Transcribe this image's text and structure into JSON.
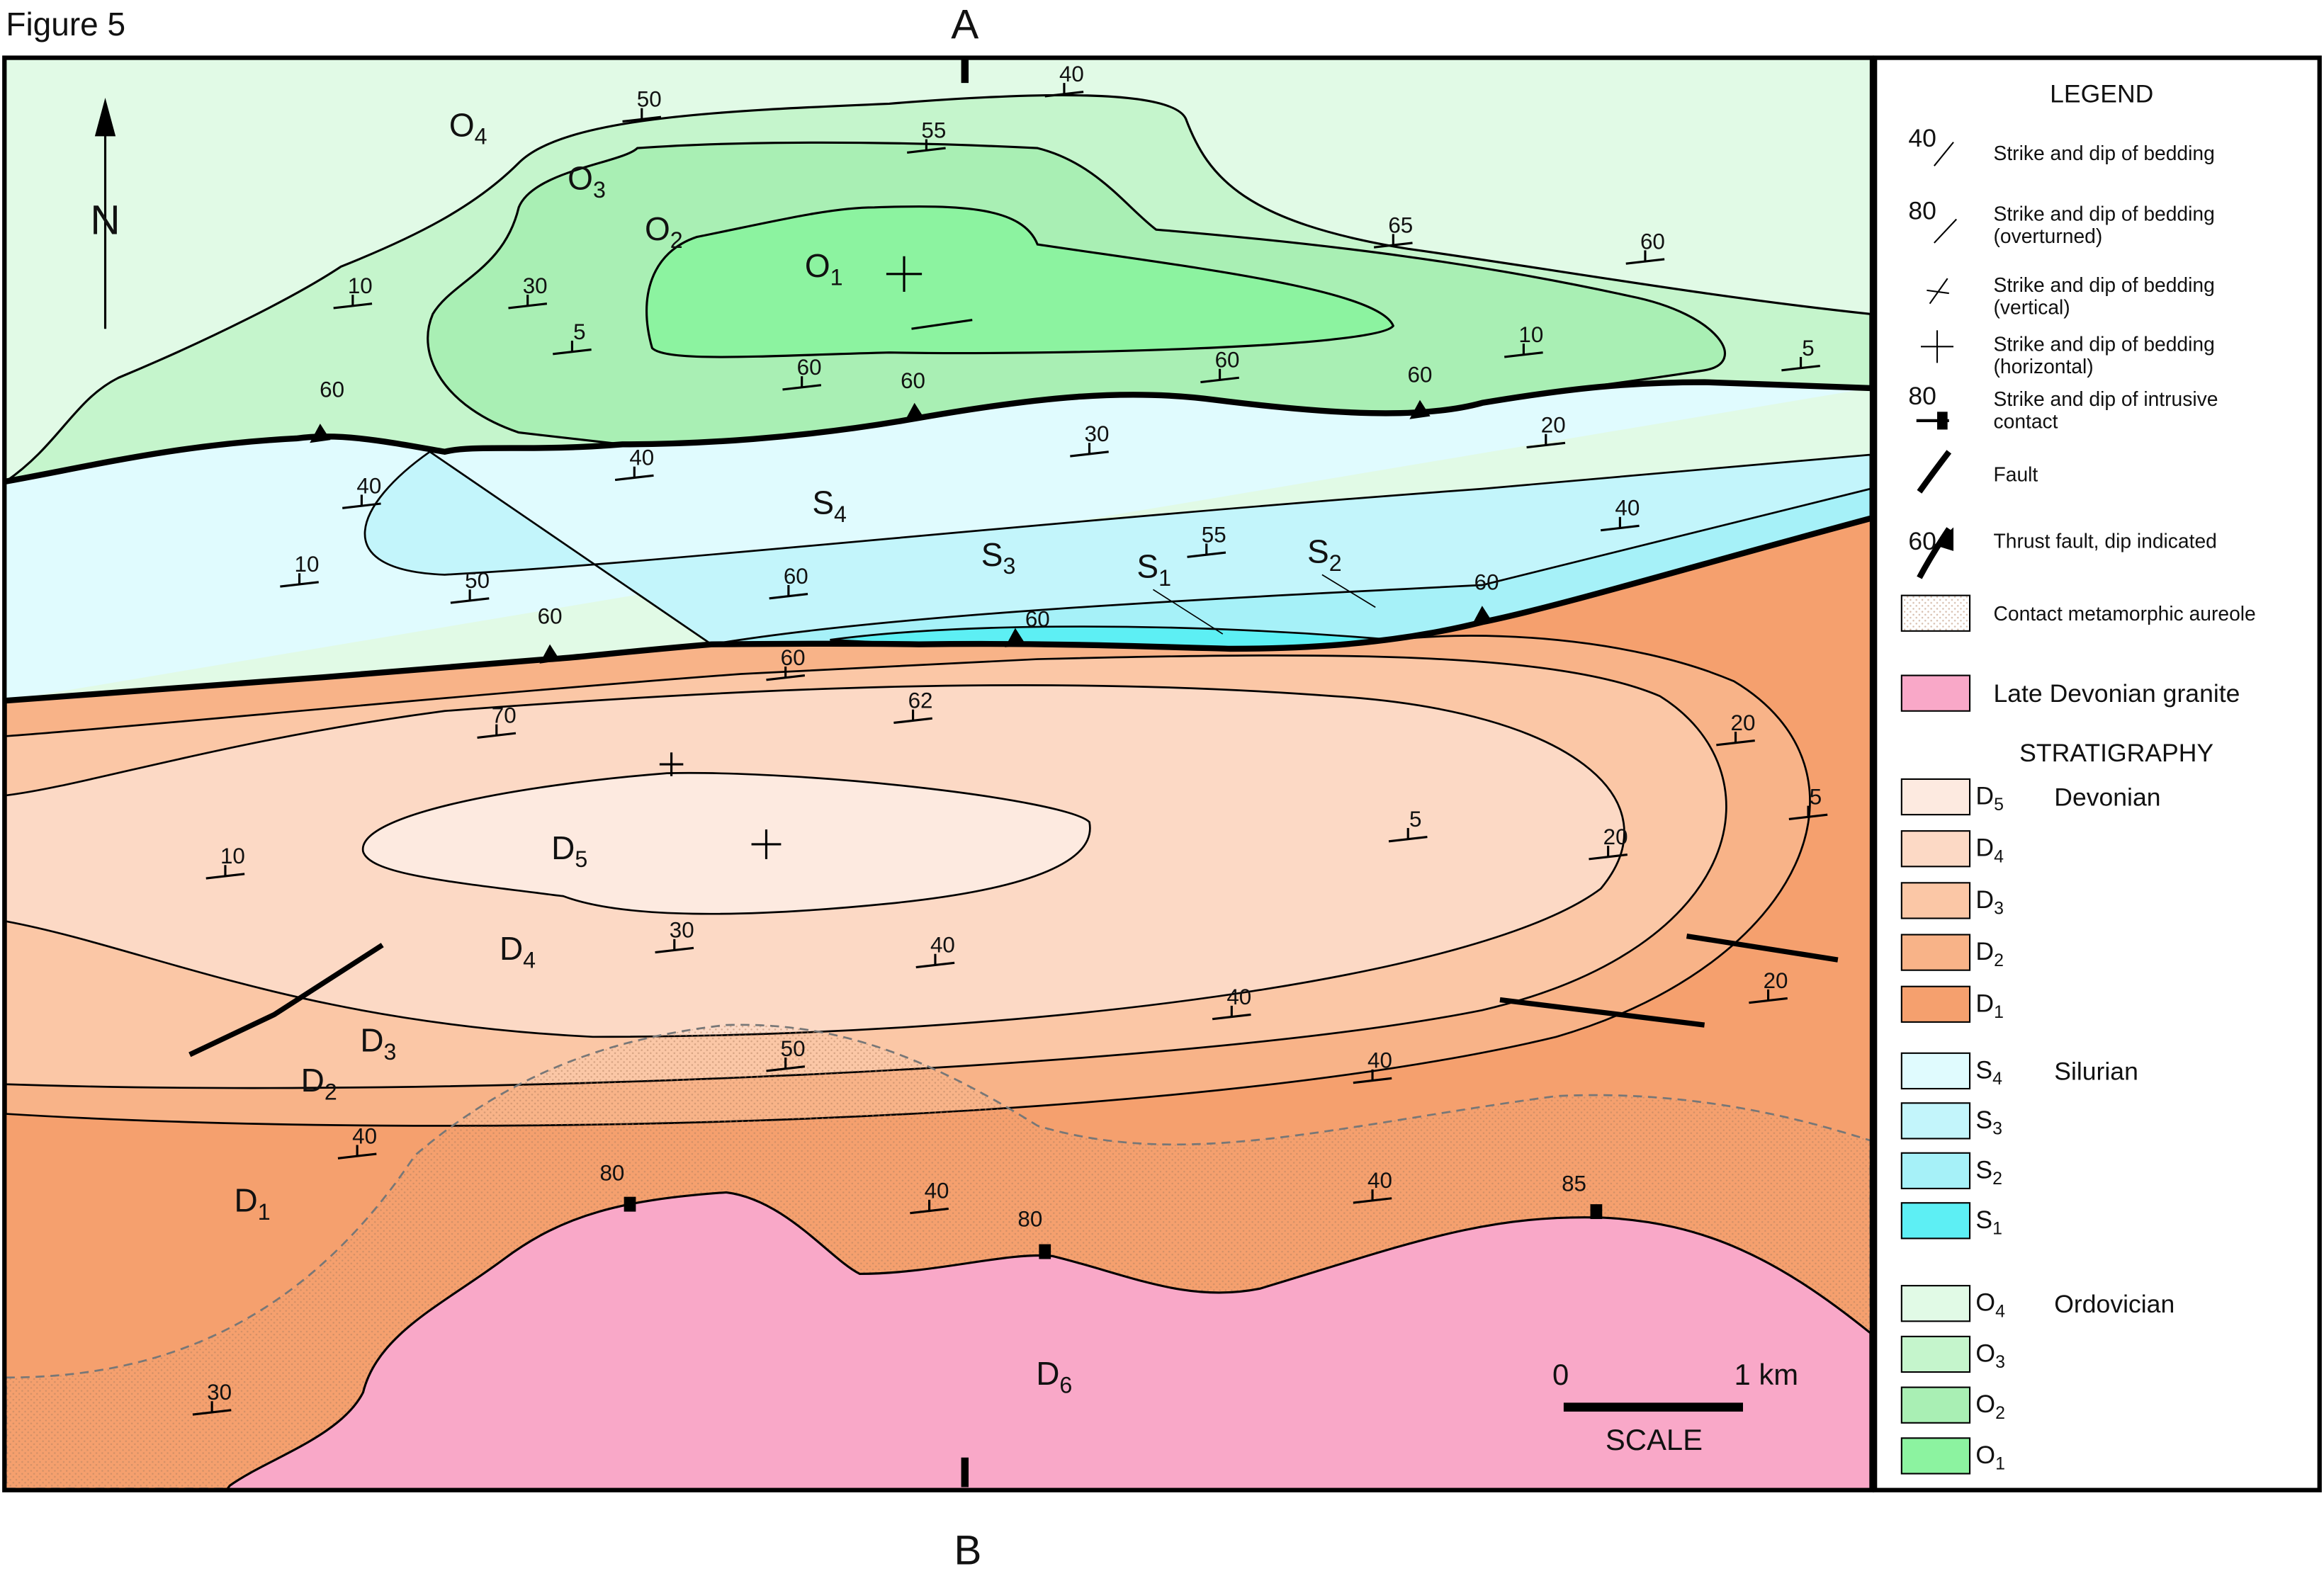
{
  "figure_label": "Figure 5",
  "section_ends": [
    "A",
    "B"
  ],
  "north": "N",
  "map_units": [
    {
      "letter": "O",
      "sub": "4"
    },
    {
      "letter": "O",
      "sub": "3"
    },
    {
      "letter": "O",
      "sub": "2"
    },
    {
      "letter": "O",
      "sub": "1"
    },
    {
      "letter": "S",
      "sub": "4"
    },
    {
      "letter": "S",
      "sub": "3"
    },
    {
      "letter": "S",
      "sub": "1"
    },
    {
      "letter": "S",
      "sub": "2"
    },
    {
      "letter": "D",
      "sub": "5"
    },
    {
      "letter": "D",
      "sub": "4"
    },
    {
      "letter": "D",
      "sub": "3"
    },
    {
      "letter": "D",
      "sub": "2"
    },
    {
      "letter": "D",
      "sub": "1"
    },
    {
      "letter": "D",
      "sub": "6"
    }
  ],
  "dips": [
    "50",
    "40",
    "55",
    "65",
    "60",
    "10",
    "30",
    "5",
    "60",
    "60",
    "60",
    "60",
    "10",
    "5",
    "60",
    "40",
    "30",
    "20",
    "40",
    "10",
    "50",
    "40",
    "55",
    "60",
    "60",
    "60",
    "60",
    "60",
    "70",
    "62",
    "20",
    "5",
    "5",
    "20",
    "10",
    "30",
    "40",
    "40",
    "20",
    "50",
    "40",
    "40",
    "80",
    "40",
    "80",
    "40",
    "85",
    "30"
  ],
  "scale": {
    "zero": "0",
    "end": "1 km",
    "label": "SCALE"
  },
  "legend": {
    "title": "LEGEND",
    "symbols": [
      {
        "value": "40",
        "lines": [
          "Strike and dip of bedding"
        ]
      },
      {
        "value": "80",
        "lines": [
          "Strike and dip of bedding",
          "(overturned)"
        ]
      },
      {
        "lines": [
          "Strike and dip of bedding",
          "(vertical)"
        ]
      },
      {
        "lines": [
          "Strike and dip of bedding",
          "(horizontal)"
        ]
      },
      {
        "value": "80",
        "lines": [
          "Strike and dip of intrusive",
          "contact"
        ]
      },
      {
        "lines": [
          "Fault"
        ]
      },
      {
        "value": "60",
        "lines": [
          "Thrust fault, dip indicated"
        ]
      },
      {
        "lines": [
          "Contact metamorphic aureole"
        ]
      }
    ],
    "granite": {
      "label": "Late Devonian granite",
      "color": "#f9a8c8"
    },
    "stratigraphy_title": "STRATIGRAPHY",
    "systems": [
      {
        "name": "Devonian",
        "units": [
          {
            "letter": "D",
            "sub": "5",
            "color": "#fdeae0"
          },
          {
            "letter": "D",
            "sub": "4",
            "color": "#fcd9c5"
          },
          {
            "letter": "D",
            "sub": "3",
            "color": "#fbc7a6"
          },
          {
            "letter": "D",
            "sub": "2",
            "color": "#f8b388"
          },
          {
            "letter": "D",
            "sub": "1",
            "color": "#f5a06e"
          }
        ]
      },
      {
        "name": "Silurian",
        "units": [
          {
            "letter": "S",
            "sub": "4",
            "color": "#e0fbfe"
          },
          {
            "letter": "S",
            "sub": "3",
            "color": "#c3f5fb"
          },
          {
            "letter": "S",
            "sub": "2",
            "color": "#a6f1f8"
          },
          {
            "letter": "S",
            "sub": "1",
            "color": "#5defF4"
          }
        ]
      },
      {
        "name": "Ordovician",
        "units": [
          {
            "letter": "O",
            "sub": "4",
            "color": "#e1fae6"
          },
          {
            "letter": "O",
            "sub": "3",
            "color": "#c5f5cc"
          },
          {
            "letter": "O",
            "sub": "2",
            "color": "#a9efb4"
          },
          {
            "letter": "O",
            "sub": "1",
            "color": "#8cf3a0"
          }
        ]
      }
    ]
  }
}
